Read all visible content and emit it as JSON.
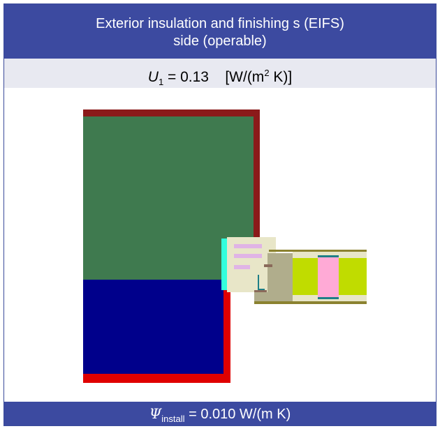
{
  "header": {
    "title_line1": "Exterior insulation and finishing s (EIFS)",
    "title_line2": "side (operable)"
  },
  "u_value": {
    "symbol": "U",
    "subscript": "1",
    "equals": " = 0.13",
    "unit_open": "[W/(m",
    "unit_sup": "2",
    "unit_close": " K)]"
  },
  "footer": {
    "symbol": "Ψ",
    "subscript": "install",
    "value": " = 0.010 W/(m K)"
  },
  "colors": {
    "header_bg": "#3c4aa0",
    "u_band_bg": "#e8e9f1",
    "brick_brown": "#8b1a1a",
    "insulation_green": "#3f7a4f",
    "wall_navy": "#00008b",
    "render_red": "#e00000",
    "frame_cream": "#e8e6c8",
    "sash_gray": "#b0ad8c",
    "glass_lime": "#c0dc00",
    "spacer_pink": "#ffaad6",
    "seal_cyan": "#33ffdd",
    "gasket_teal": "#1e7f87",
    "pane_olive": "#8b8230",
    "lavender": "#e0b4e6"
  }
}
